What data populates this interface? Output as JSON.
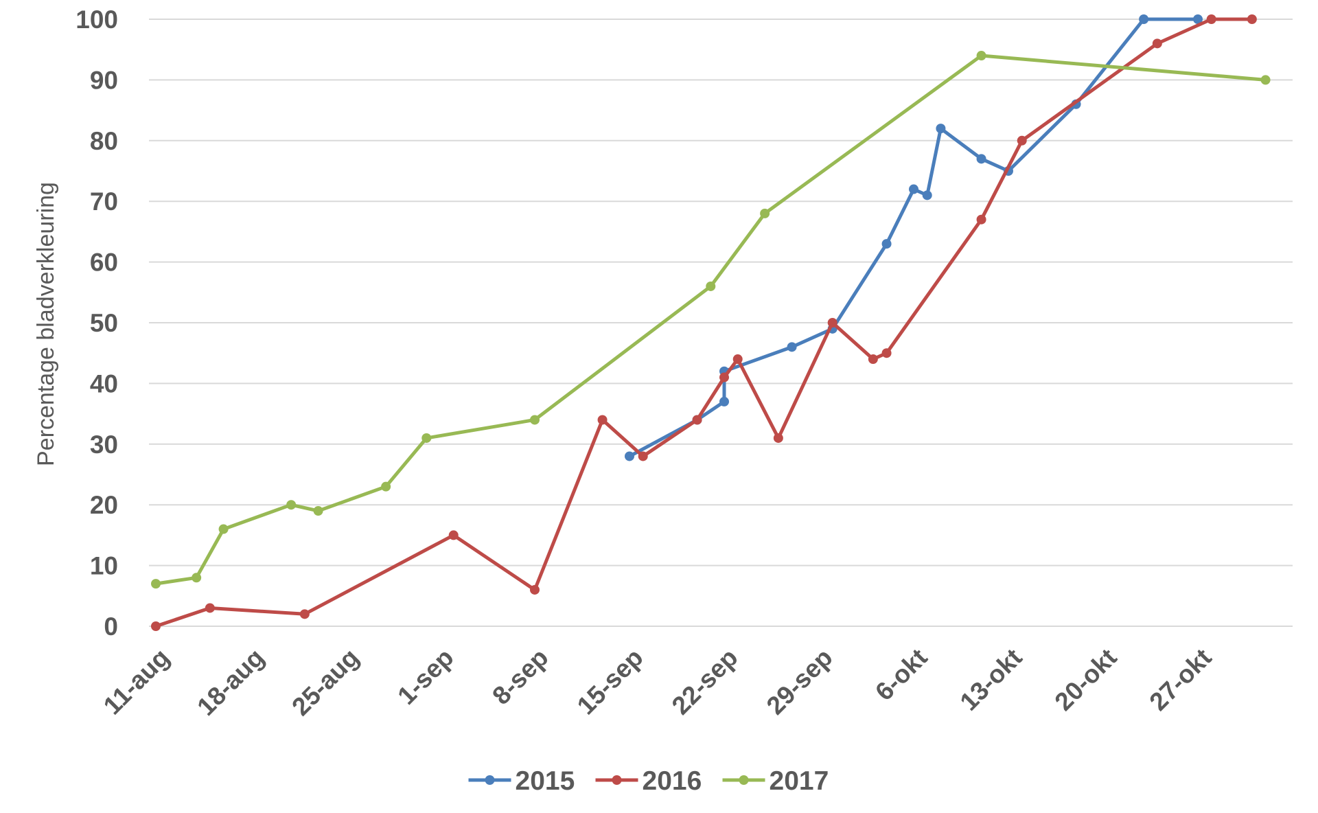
{
  "chart_data": {
    "type": "line",
    "title": "",
    "xlabel": "",
    "ylabel": "Percentage bladverkleuring",
    "ylim": [
      0,
      100
    ],
    "yticks": [
      0,
      10,
      20,
      30,
      40,
      50,
      60,
      70,
      80,
      90,
      100
    ],
    "xlim": [
      "2000-08-11",
      "2000-11-03"
    ],
    "xticks": [
      {
        "date": "2000-08-11",
        "label": "11-aug"
      },
      {
        "date": "2000-08-18",
        "label": "18-aug"
      },
      {
        "date": "2000-08-25",
        "label": "25-aug"
      },
      {
        "date": "2000-09-01",
        "label": "1-sep"
      },
      {
        "date": "2000-09-08",
        "label": "8-sep"
      },
      {
        "date": "2000-09-15",
        "label": "15-sep"
      },
      {
        "date": "2000-09-22",
        "label": "22-sep"
      },
      {
        "date": "2000-09-29",
        "label": "29-sep"
      },
      {
        "date": "2000-10-06",
        "label": "6-okt"
      },
      {
        "date": "2000-10-13",
        "label": "13-okt"
      },
      {
        "date": "2000-10-20",
        "label": "20-okt"
      },
      {
        "date": "2000-10-27",
        "label": "27-okt"
      }
    ],
    "grid": true,
    "legend": "bottom",
    "series": [
      {
        "name": "2015",
        "color": "#4a7ebb",
        "points": [
          {
            "x": "2000-09-15",
            "y": 28
          },
          {
            "x": "2000-09-20",
            "y": 34
          },
          {
            "x": "2000-09-22",
            "y": 37
          },
          {
            "x": "2000-09-22",
            "y": 42
          },
          {
            "x": "2000-09-27",
            "y": 46
          },
          {
            "x": "2000-09-30",
            "y": 49
          },
          {
            "x": "2000-10-04",
            "y": 63
          },
          {
            "x": "2000-10-06",
            "y": 72
          },
          {
            "x": "2000-10-07",
            "y": 71
          },
          {
            "x": "2000-10-08",
            "y": 82
          },
          {
            "x": "2000-10-11",
            "y": 77
          },
          {
            "x": "2000-10-13",
            "y": 75
          },
          {
            "x": "2000-10-18",
            "y": 86
          },
          {
            "x": "2000-10-23",
            "y": 100
          },
          {
            "x": "2000-10-27",
            "y": 100
          }
        ]
      },
      {
        "name": "2016",
        "color": "#be4b48",
        "points": [
          {
            "x": "2000-08-11",
            "y": 0
          },
          {
            "x": "2000-08-15",
            "y": 3
          },
          {
            "x": "2000-08-22",
            "y": 2
          },
          {
            "x": "2000-09-02",
            "y": 15
          },
          {
            "x": "2000-09-08",
            "y": 6
          },
          {
            "x": "2000-09-13",
            "y": 34
          },
          {
            "x": "2000-09-16",
            "y": 28
          },
          {
            "x": "2000-09-20",
            "y": 34
          },
          {
            "x": "2000-09-22",
            "y": 41
          },
          {
            "x": "2000-09-23",
            "y": 44
          },
          {
            "x": "2000-09-26",
            "y": 31
          },
          {
            "x": "2000-09-30",
            "y": 50
          },
          {
            "x": "2000-10-03",
            "y": 44
          },
          {
            "x": "2000-10-04",
            "y": 45
          },
          {
            "x": "2000-10-11",
            "y": 67
          },
          {
            "x": "2000-10-14",
            "y": 80
          },
          {
            "x": "2000-10-24",
            "y": 96
          },
          {
            "x": "2000-10-28",
            "y": 100
          },
          {
            "x": "2000-10-31",
            "y": 100
          }
        ]
      },
      {
        "name": "2017",
        "color": "#98b954",
        "points": [
          {
            "x": "2000-08-11",
            "y": 7
          },
          {
            "x": "2000-08-14",
            "y": 8
          },
          {
            "x": "2000-08-16",
            "y": 16
          },
          {
            "x": "2000-08-21",
            "y": 20
          },
          {
            "x": "2000-08-23",
            "y": 19
          },
          {
            "x": "2000-08-28",
            "y": 23
          },
          {
            "x": "2000-08-31",
            "y": 31
          },
          {
            "x": "2000-09-08",
            "y": 34
          },
          {
            "x": "2000-09-21",
            "y": 56
          },
          {
            "x": "2000-09-25",
            "y": 68
          },
          {
            "x": "2000-10-11",
            "y": 94
          },
          {
            "x": "2000-11-01",
            "y": 90
          }
        ]
      }
    ]
  }
}
